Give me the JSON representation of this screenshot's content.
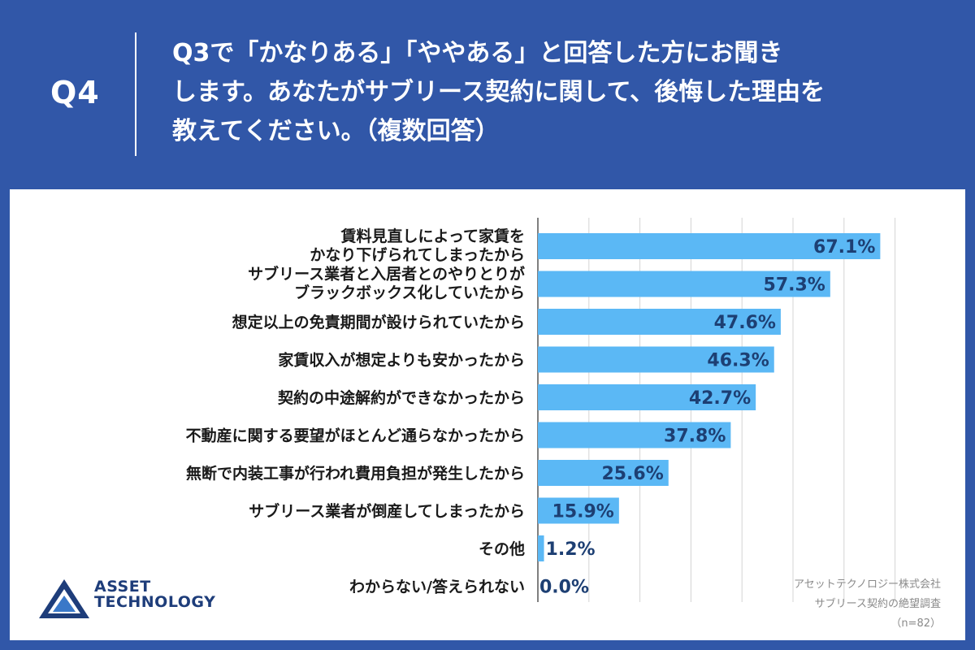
{
  "header": {
    "q_label": "Q4",
    "question_lines": [
      "Q3で「かなりある」「ややある」と回答した方にお聞き",
      "します。あなたがサブリース契約に関して、後悔した理由を",
      "教えてください。（複数回答）"
    ]
  },
  "logo": {
    "line1": "ASSET",
    "line2": "TECHNOLOGY"
  },
  "credits": {
    "company": "アセットテクノロジー株式会社",
    "survey": "サブリース契約の絶望調査",
    "sample": "（n=82）"
  },
  "colors": {
    "background": "#3157a8",
    "bar": "#5bb8f5",
    "value_text": "#1d3f73"
  },
  "chart_data": {
    "type": "bar",
    "orientation": "horizontal",
    "categories": [
      [
        "賃料見直しによって家賃を",
        "かなり下げられてしまったから"
      ],
      [
        "サブリース業者と入居者とのやりとりが",
        "ブラックボックス化していたから"
      ],
      [
        "想定以上の免責期間が設けられていたから"
      ],
      [
        "家賃収入が想定よりも安かったから"
      ],
      [
        "契約の中途解約ができなかったから"
      ],
      [
        "不動産に関する要望がほとんど通らなかったから"
      ],
      [
        "無断で内装工事が行われ費用負担が発生したから"
      ],
      [
        "サブリース業者が倒産してしまったから"
      ],
      [
        "その他"
      ],
      [
        "わからない/答えられない"
      ]
    ],
    "values": [
      67.1,
      57.3,
      47.6,
      46.3,
      42.7,
      37.8,
      25.6,
      15.9,
      1.2,
      0.0
    ],
    "value_labels": [
      "67.1%",
      "57.3%",
      "47.6%",
      "46.3%",
      "42.7%",
      "37.8%",
      "25.6%",
      "15.9%",
      "1.2%",
      "0.0%"
    ],
    "xlim": [
      0,
      70
    ],
    "gridlines": [
      10,
      20,
      30,
      40,
      50,
      60,
      70
    ],
    "grid": true,
    "legend": "none"
  }
}
